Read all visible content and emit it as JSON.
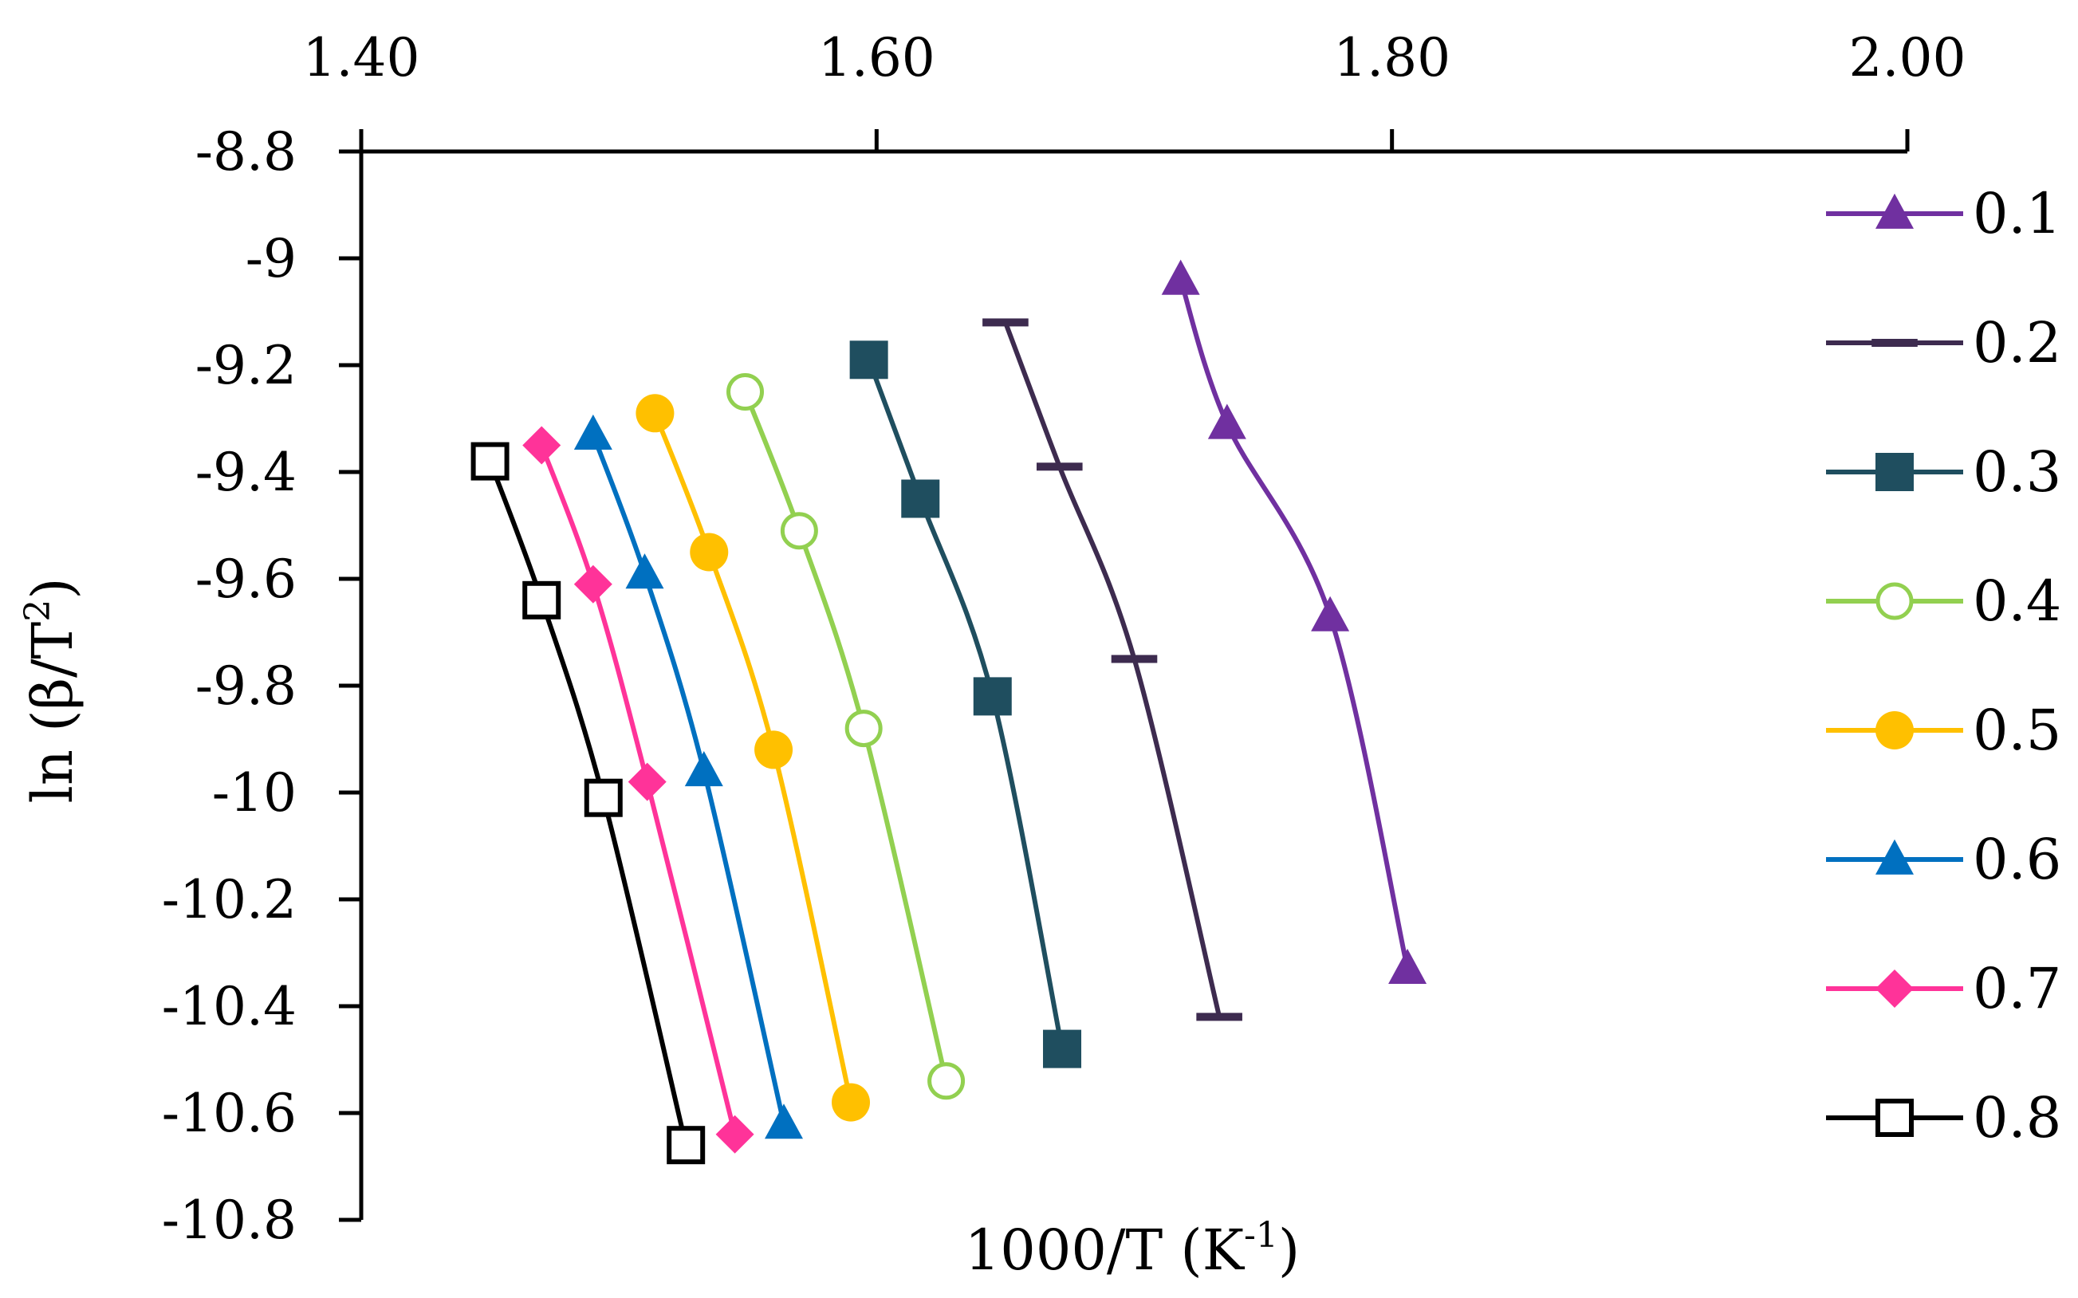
{
  "chart_data": {
    "type": "line",
    "title": "",
    "xlabel": "1000/T (K-1)",
    "xlabel_parts": {
      "base": "1000/T (K",
      "sup": "-1",
      "close": ")"
    },
    "ylabel": "ln (β/T2)",
    "ylabel_parts": {
      "base": "ln (β/T",
      "sup": "2",
      "close": ")"
    },
    "xlim": [
      1.4,
      2.0
    ],
    "ylim": [
      -10.8,
      -8.8
    ],
    "x_ticks": [
      "1.40",
      "1.60",
      "1.80",
      "2.00"
    ],
    "x_tick_values": [
      1.4,
      1.6,
      1.8,
      2.0
    ],
    "y_ticks": [
      "-8.8",
      "-9",
      "-9.2",
      "-9.4",
      "-9.6",
      "-9.8",
      "-10",
      "-10.2",
      "-10.4",
      "-10.6",
      "-10.8"
    ],
    "y_tick_values": [
      -8.8,
      -9.0,
      -9.2,
      -9.4,
      -9.6,
      -9.8,
      -10.0,
      -10.2,
      -10.4,
      -10.6,
      -10.8
    ],
    "x_axis_position": "top",
    "grid": false,
    "legend_position": "right",
    "series": [
      {
        "name": "0.1",
        "color": "#7030a0",
        "marker": "triangle",
        "x": [
          1.718,
          1.736,
          1.776,
          1.806
        ],
        "y": [
          -9.04,
          -9.31,
          -9.67,
          -10.33
        ]
      },
      {
        "name": "0.2",
        "color": "#3d2b4f",
        "marker": "dash",
        "x": [
          1.65,
          1.671,
          1.7,
          1.733
        ],
        "y": [
          -9.12,
          -9.39,
          -9.75,
          -10.42
        ]
      },
      {
        "name": "0.3",
        "color": "#1f4e5f",
        "marker": "square",
        "x": [
          1.597,
          1.617,
          1.645,
          1.672
        ],
        "y": [
          -9.19,
          -9.45,
          -9.82,
          -10.48
        ]
      },
      {
        "name": "0.4",
        "color": "#92d050",
        "marker": "open-circle",
        "x": [
          1.549,
          1.57,
          1.595,
          1.627
        ],
        "y": [
          -9.25,
          -9.51,
          -9.88,
          -10.54
        ]
      },
      {
        "name": "0.5",
        "color": "#ffc000",
        "marker": "circle",
        "x": [
          1.514,
          1.535,
          1.56,
          1.59
        ],
        "y": [
          -9.29,
          -9.55,
          -9.92,
          -10.58
        ]
      },
      {
        "name": "0.6",
        "color": "#0070c0",
        "marker": "triangle",
        "x": [
          1.49,
          1.51,
          1.533,
          1.564
        ],
        "y": [
          -9.33,
          -9.59,
          -9.96,
          -10.62
        ]
      },
      {
        "name": "0.7",
        "color": "#ff3399",
        "marker": "diamond",
        "x": [
          1.47,
          1.49,
          1.511,
          1.545
        ],
        "y": [
          -9.35,
          -9.61,
          -9.98,
          -10.64
        ]
      },
      {
        "name": "0.8",
        "color": "#000000",
        "marker": "open-square",
        "x": [
          1.45,
          1.47,
          1.494,
          1.526
        ],
        "y": [
          -9.38,
          -9.64,
          -10.01,
          -10.66
        ]
      }
    ]
  }
}
